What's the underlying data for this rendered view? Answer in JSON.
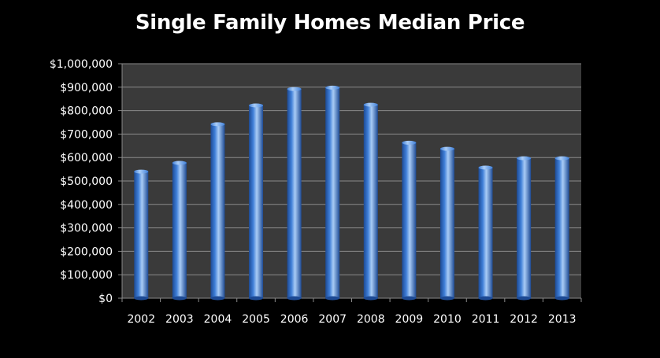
{
  "chart_data": {
    "type": "bar",
    "title": "Single Family Homes Median Price",
    "categories": [
      "2002",
      "2003",
      "2004",
      "2005",
      "2006",
      "2007",
      "2008",
      "2009",
      "2010",
      "2011",
      "2012",
      "2013"
    ],
    "values": [
      540000,
      577000,
      742000,
      822000,
      892000,
      898000,
      825000,
      663000,
      637000,
      557000,
      597000,
      597000
    ],
    "ylim": [
      0,
      1000000
    ],
    "yticks": [
      "$0",
      "$100,000",
      "$200,000",
      "$300,000",
      "$400,000",
      "$500,000",
      "$600,000",
      "$700,000",
      "$800,000",
      "$900,000",
      "$1,000,000"
    ],
    "grid": true,
    "colors": {
      "background": "#000000",
      "plot_area": "#3a3a3a",
      "bar": "#3f7fd8",
      "bar_highlight": "#a9ccf6",
      "bar_shadow": "#1d4a94",
      "gridline": "#8a8a8a",
      "text": "#ffffff"
    }
  }
}
